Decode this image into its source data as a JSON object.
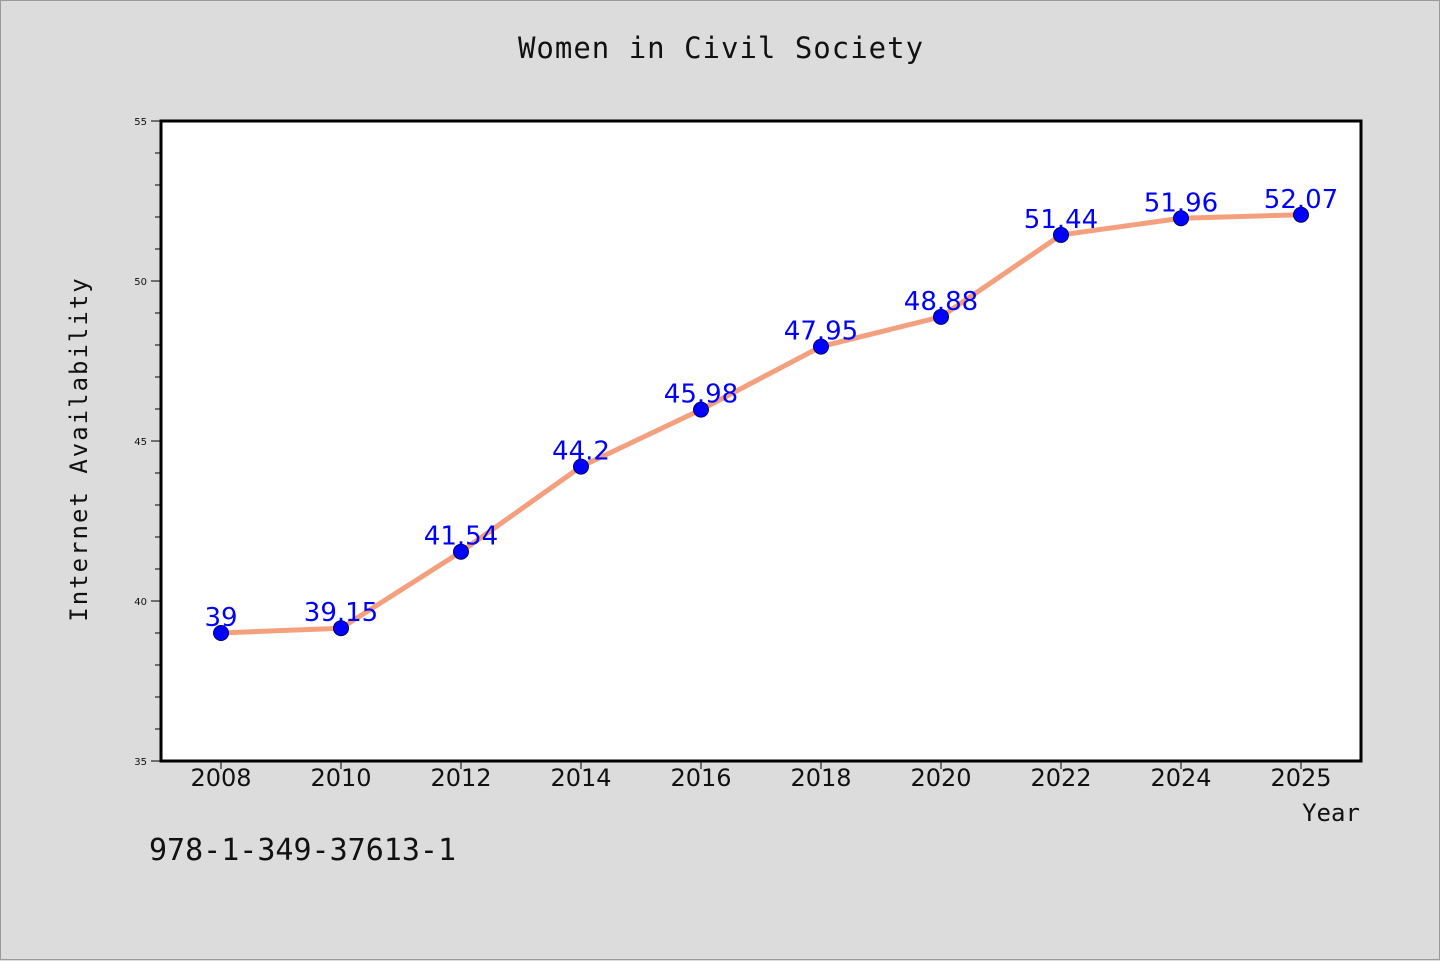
{
  "chart_data": {
    "type": "line",
    "title": "Women in Civil Society",
    "xlabel": "Year",
    "ylabel": "Internet Availability",
    "categories": [
      "2008",
      "2010",
      "2012",
      "2014",
      "2016",
      "2018",
      "2020",
      "2022",
      "2024",
      "2025"
    ],
    "series": [
      {
        "values": [
          39,
          39.15,
          41.54,
          44.2,
          45.98,
          47.95,
          48.88,
          51.44,
          51.96,
          52.07
        ],
        "labels": [
          "39",
          "39.15",
          "41.54",
          "44.2",
          "45.98",
          "47.95",
          "48.88",
          "51.44",
          "51.96",
          "52.07"
        ],
        "line_color": "#f4a07e",
        "marker_color": "#0000ff"
      }
    ],
    "ylim": [
      35,
      55
    ],
    "yticks": [
      35,
      40,
      45,
      50,
      55
    ],
    "ytick_labels": [
      "35",
      "40",
      "45",
      "50",
      "55"
    ],
    "grid": false,
    "legend": "none",
    "label_color": "#0000ff"
  },
  "footer": {
    "isbn": "978-1-349-37613-1"
  }
}
